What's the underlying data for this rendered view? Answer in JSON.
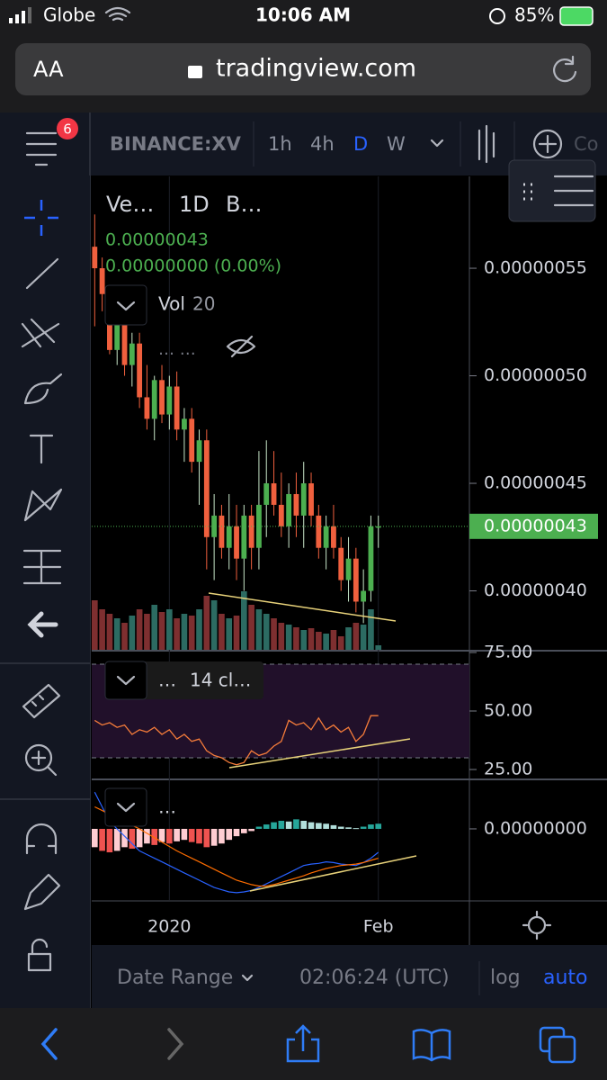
{
  "status_bar": {
    "carrier": "Globe",
    "time": "10:06 AM",
    "battery": "85%"
  },
  "browser": {
    "text_size": "AA",
    "url": "tradingview.com"
  },
  "toolbar": {
    "badge": "6",
    "symbol": "BINANCE:XV",
    "intervals": [
      "1h",
      "4h",
      "D",
      "W"
    ],
    "compare": "Co"
  },
  "legend": {
    "symbol": "Ve…",
    "interval": "1D",
    "exchange": "B…",
    "price": "0.00000043",
    "change": "0.00000000 (0.00%)",
    "volume_label": "Vol",
    "volume_length": "20",
    "hidden": "…   …"
  },
  "rsi_legend": {
    "more": "…",
    "label": "14 cl…"
  },
  "macd_legend": {
    "more": "…"
  },
  "bottom_bar": {
    "date_range": "Date Range",
    "clock": "02:06:24 (UTC)",
    "log": "log",
    "auto": "auto"
  },
  "chart_data": [
    {
      "type": "candlestick",
      "open": [
        5.6e-07,
        5.5e-07,
        5.38e-07,
        5.12e-07,
        5.25e-07,
        5.05e-07,
        5.15e-07,
        4.9e-07,
        4.8e-07,
        4.98e-07,
        4.82e-07,
        4.95e-07,
        4.75e-07,
        4.8e-07,
        4.6e-07,
        4.7e-07,
        4.25e-07,
        4.35e-07,
        4.2e-07,
        4.3e-07,
        4.15e-07,
        4.35e-07,
        4.2e-07,
        4.4e-07,
        4.5e-07,
        4.4e-07,
        4.3e-07,
        4.45e-07,
        4.35e-07,
        4.5e-07,
        4.35e-07,
        4.2e-07,
        4.3e-07,
        4.2e-07,
        4.05e-07,
        4.15e-07,
        3.95e-07,
        4e-07,
        4.3e-07
      ],
      "high": [
        5.75e-07,
        5.55e-07,
        5.4e-07,
        5.3e-07,
        5.3e-07,
        5.2e-07,
        5.2e-07,
        5.05e-07,
        5e-07,
        5.05e-07,
        5e-07,
        5.02e-07,
        4.85e-07,
        4.85e-07,
        4.75e-07,
        4.75e-07,
        4.45e-07,
        4.4e-07,
        4.45e-07,
        4.4e-07,
        4.4e-07,
        4.4e-07,
        4.65e-07,
        4.7e-07,
        4.65e-07,
        4.55e-07,
        4.5e-07,
        4.55e-07,
        4.6e-07,
        4.55e-07,
        4.4e-07,
        4.35e-07,
        4.4e-07,
        4.25e-07,
        4.25e-07,
        4.2e-07,
        4.1e-07,
        4.35e-07,
        4.35e-07
      ],
      "low": [
        5.23e-07,
        5.3e-07,
        5.1e-07,
        5.05e-07,
        5e-07,
        4.95e-07,
        4.85e-07,
        4.75e-07,
        4.7e-07,
        4.78e-07,
        4.75e-07,
        4.7e-07,
        4.6e-07,
        4.55e-07,
        4.4e-07,
        4.1e-07,
        4.05e-07,
        4.15e-07,
        4.1e-07,
        4.05e-07,
        4e-07,
        4.1e-07,
        4.1e-07,
        4.25e-07,
        4.35e-07,
        4.25e-07,
        4.2e-07,
        4.25e-07,
        4.2e-07,
        4.3e-07,
        4.15e-07,
        4.1e-07,
        4.15e-07,
        4e-07,
        3.95e-07,
        3.9e-07,
        3.85e-07,
        3.95e-07,
        4.2e-07
      ],
      "close": [
        5.5e-07,
        5.38e-07,
        5.12e-07,
        5.25e-07,
        5.05e-07,
        5.15e-07,
        4.9e-07,
        4.8e-07,
        4.98e-07,
        4.82e-07,
        4.95e-07,
        4.75e-07,
        4.8e-07,
        4.6e-07,
        4.7e-07,
        4.25e-07,
        4.35e-07,
        4.2e-07,
        4.3e-07,
        4.15e-07,
        4.35e-07,
        4.2e-07,
        4.4e-07,
        4.5e-07,
        4.4e-07,
        4.3e-07,
        4.45e-07,
        4.35e-07,
        4.5e-07,
        4.35e-07,
        4.2e-07,
        4.3e-07,
        4.2e-07,
        4.05e-07,
        4.15e-07,
        3.95e-07,
        4e-07,
        4.3e-07,
        4.3e-07
      ],
      "up_color": "#4caf50",
      "down_color": "#f0603e",
      "ylim": [
        3.726e-07,
        5.927e-07
      ],
      "yticks": [
        {
          "value": 4e-07,
          "label": "0.00000040"
        },
        {
          "value": 4.5e-07,
          "label": "0.00000045"
        },
        {
          "value": 5e-07,
          "label": "0.00000050"
        },
        {
          "value": 5.5e-07,
          "label": "0.00000055"
        }
      ],
      "last_price": {
        "value": 4.3e-07,
        "label": "0.00000043"
      },
      "last_price_color": "#4caf50",
      "xlim": [
        -0.4,
        50.2
      ],
      "xticks": [
        {
          "value": 10,
          "label": "2020"
        },
        {
          "value": 38,
          "label": "Feb"
        }
      ],
      "volume": {
        "values": [
          55,
          45,
          40,
          35,
          30,
          38,
          45,
          40,
          50,
          42,
          45,
          35,
          40,
          38,
          45,
          60,
          55,
          40,
          35,
          38,
          65,
          50,
          45,
          40,
          35,
          30,
          28,
          25,
          22,
          24,
          20,
          18,
          22,
          15,
          25,
          30,
          28,
          45,
          5
        ],
        "ylim": [
          0,
          100
        ],
        "up_color": "#2c6b62",
        "down_color": "#7e2f30"
      }
    },
    {
      "type": "line",
      "values": [
        46,
        44,
        45,
        43,
        44,
        40,
        42,
        41,
        43,
        40,
        42,
        38,
        40,
        37,
        38,
        33,
        31,
        30,
        28,
        27,
        28,
        33,
        31,
        32,
        35,
        37,
        46,
        44,
        45,
        42,
        47,
        42,
        44,
        41,
        43,
        37,
        40,
        48,
        48
      ],
      "color": "#f57c3a",
      "ylim": [
        21.15,
        75.38
      ],
      "yticks": [
        {
          "value": 25,
          "label": "25.00"
        },
        {
          "value": 50,
          "label": "50.00"
        },
        {
          "value": 75,
          "label": "75.00"
        }
      ],
      "bands": [
        30,
        70
      ],
      "band_color": "#21102a"
    },
    {
      "type": "macd",
      "histogram": [
        -2.5e-09,
        -3e-09,
        -3.2e-09,
        -3e-09,
        -2.5e-09,
        -2.7e-09,
        -2.5e-09,
        -2e-09,
        -2.2e-09,
        -1.8e-09,
        -2e-09,
        -1.7e-09,
        -1.5e-09,
        -1.8e-09,
        -2e-09,
        -2.5e-09,
        -2.3e-09,
        -2e-09,
        -1.5e-09,
        -1e-09,
        -6e-10,
        -3e-10,
        3e-10,
        6e-10,
        9e-10,
        1.1e-09,
        1e-09,
        1.3e-09,
        1.1e-09,
        9e-10,
        8e-10,
        7e-10,
        5e-10,
        3e-10,
        2e-10,
        1e-10,
        3e-10,
        6e-10,
        7e-10
      ],
      "macd": [
        5e-09,
        3e-09,
        1e-09,
        0,
        -1e-09,
        -2e-09,
        -3e-09,
        -3.5e-09,
        -4e-09,
        -4.5e-09,
        -5e-09,
        -5.5e-09,
        -6e-09,
        -6.5e-09,
        -7e-09,
        -7.5e-09,
        -8e-09,
        -8.3e-09,
        -8.6e-09,
        -8.7e-09,
        -8.6e-09,
        -8.4e-09,
        -8e-09,
        -7.5e-09,
        -7e-09,
        -6.5e-09,
        -6e-09,
        -5.5e-09,
        -5e-09,
        -4.8e-09,
        -4.7e-09,
        -4.5e-09,
        -4.6e-09,
        -4.8e-09,
        -4.9e-09,
        -5e-09,
        -4.6e-09,
        -4e-09,
        -3.2e-09
      ],
      "signal": [
        3e-09,
        2.5e-09,
        2e-09,
        1.5e-09,
        1e-09,
        5e-10,
        0,
        -6e-10,
        -1.2e-09,
        -1.8e-09,
        -2.4e-09,
        -3e-09,
        -3.5e-09,
        -4e-09,
        -4.5e-09,
        -5e-09,
        -5.5e-09,
        -6e-09,
        -6.5e-09,
        -7e-09,
        -7.3e-09,
        -7.6e-09,
        -7.8e-09,
        -7.8e-09,
        -7.6e-09,
        -7.3e-09,
        -7e-09,
        -6.7e-09,
        -6.4e-09,
        -6e-09,
        -5.7e-09,
        -5.4e-09,
        -5.2e-09,
        -5e-09,
        -4.9e-09,
        -4.8e-09,
        -4.6e-09,
        -4.3e-09,
        -4e-09
      ],
      "macd_color": "#2962ff",
      "signal_color": "#ff6d00",
      "hist_colors": [
        "#26a69a",
        "#b2dfdb",
        "#ffcdd2",
        "#ef5350"
      ],
      "ylim": [
        -9.7e-09,
        6.5e-09
      ],
      "yticks": [
        {
          "value": 0,
          "label": "0.00000000"
        }
      ]
    }
  ]
}
